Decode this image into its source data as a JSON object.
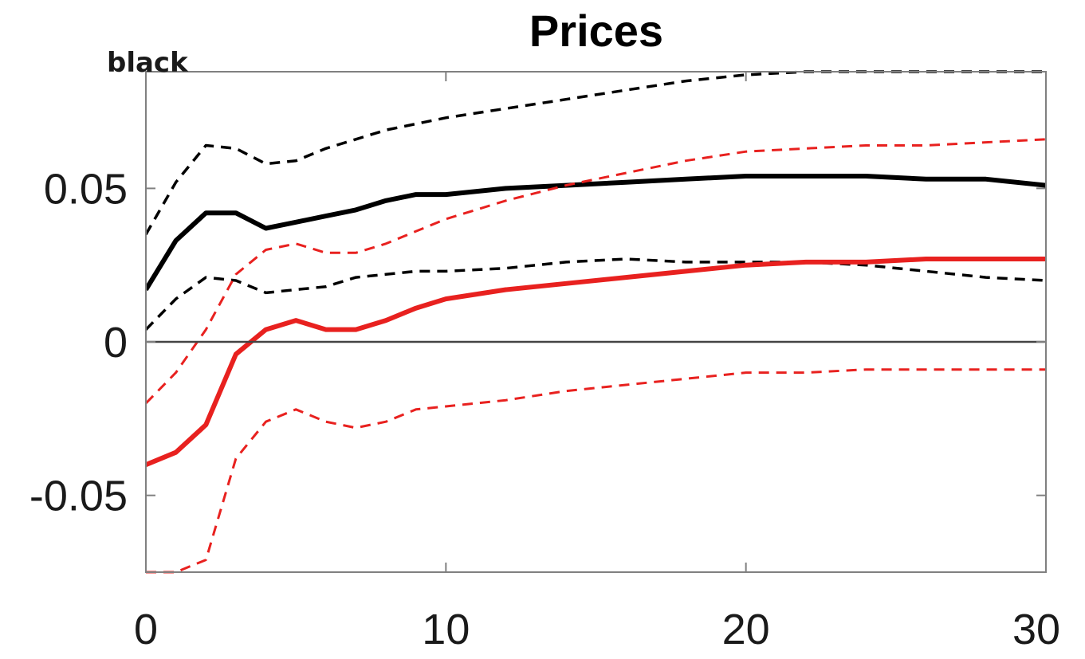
{
  "chart_data": {
    "type": "line",
    "title": "Prices",
    "annotation": "black",
    "xlabel": "",
    "ylabel": "",
    "xlim": [
      0,
      30
    ],
    "ylim": [
      -0.075,
      0.088
    ],
    "xticks": [
      0,
      10,
      20,
      30
    ],
    "xtick_labels": [
      "0",
      "10",
      "20",
      "30"
    ],
    "yticks": [
      -0.05,
      0,
      0.05
    ],
    "ytick_labels": [
      "-0.05",
      "0",
      "0.05"
    ],
    "grid": false,
    "legend": "none",
    "zero_line": true,
    "colors": {
      "black": "#000000",
      "red": "#e8211f",
      "axis": "#808080",
      "zero": "#444444"
    },
    "x": [
      0,
      1,
      2,
      3,
      4,
      5,
      6,
      7,
      8,
      9,
      10,
      12,
      14,
      16,
      18,
      20,
      22,
      24,
      26,
      28,
      30
    ],
    "series": [
      {
        "color": "black",
        "style": "solid",
        "width": 6,
        "values": [
          0.017,
          0.033,
          0.042,
          0.042,
          0.037,
          0.039,
          0.041,
          0.043,
          0.046,
          0.048,
          0.048,
          0.05,
          0.051,
          0.052,
          0.053,
          0.054,
          0.054,
          0.054,
          0.053,
          0.053,
          0.051
        ]
      },
      {
        "color": "black",
        "style": "dashed",
        "width": 3.5,
        "values": [
          0.035,
          0.052,
          0.064,
          0.063,
          0.058,
          0.059,
          0.063,
          0.066,
          0.069,
          0.071,
          0.073,
          0.076,
          0.079,
          0.082,
          0.085,
          0.087,
          0.088,
          0.088,
          0.088,
          0.088,
          0.088
        ]
      },
      {
        "color": "black",
        "style": "dashed",
        "width": 3.5,
        "values": [
          0.004,
          0.014,
          0.021,
          0.02,
          0.016,
          0.017,
          0.018,
          0.021,
          0.022,
          0.023,
          0.023,
          0.024,
          0.026,
          0.027,
          0.026,
          0.026,
          0.026,
          0.025,
          0.023,
          0.021,
          0.02
        ]
      },
      {
        "color": "red",
        "style": "solid",
        "width": 6,
        "values": [
          -0.04,
          -0.036,
          -0.027,
          -0.004,
          0.004,
          0.007,
          0.004,
          0.004,
          0.007,
          0.011,
          0.014,
          0.017,
          0.019,
          0.021,
          0.023,
          0.025,
          0.026,
          0.026,
          0.027,
          0.027,
          0.027
        ]
      },
      {
        "color": "red",
        "style": "dashed",
        "width": 3,
        "values": [
          -0.02,
          -0.01,
          0.004,
          0.022,
          0.03,
          0.032,
          0.029,
          0.029,
          0.032,
          0.036,
          0.04,
          0.046,
          0.051,
          0.055,
          0.059,
          0.062,
          0.063,
          0.064,
          0.064,
          0.065,
          0.066
        ]
      },
      {
        "color": "red",
        "style": "dashed",
        "width": 3,
        "values": [
          -0.075,
          -0.075,
          -0.071,
          -0.038,
          -0.026,
          -0.022,
          -0.026,
          -0.028,
          -0.026,
          -0.022,
          -0.021,
          -0.019,
          -0.016,
          -0.014,
          -0.012,
          -0.01,
          -0.01,
          -0.009,
          -0.009,
          -0.009,
          -0.009
        ]
      }
    ]
  }
}
